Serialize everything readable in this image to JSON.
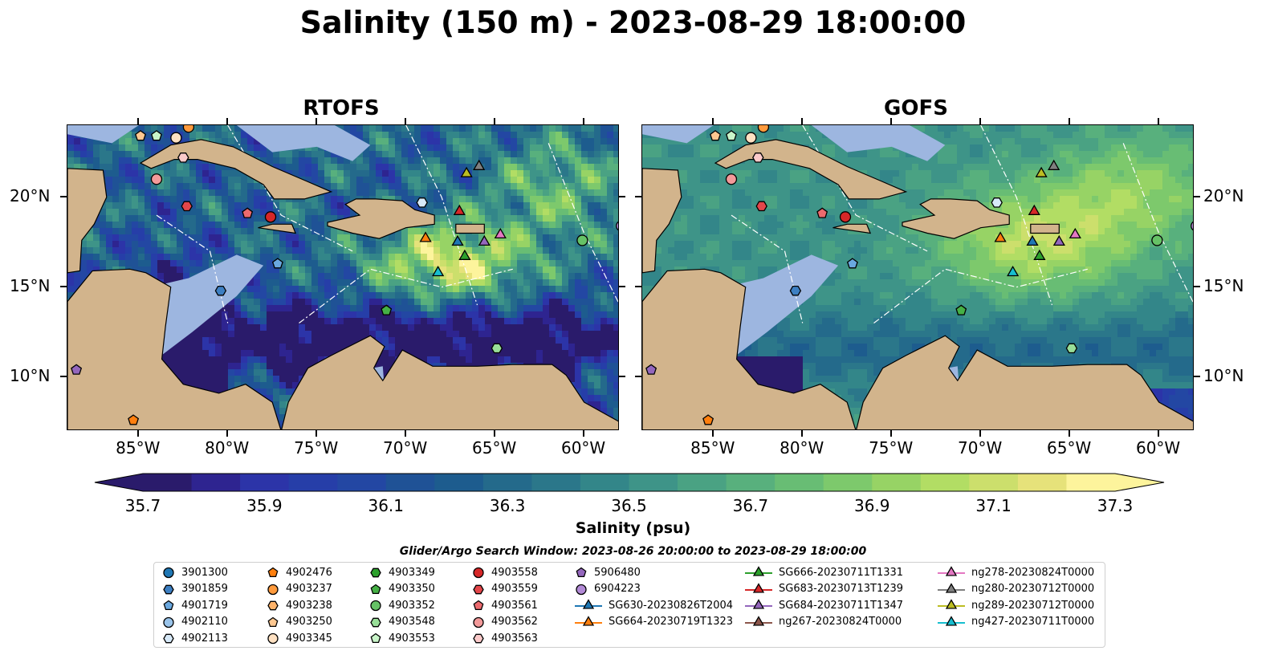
{
  "title": "Salinity (150 m) - 2023-08-29 18:00:00",
  "panels": [
    {
      "name": "RTOFS",
      "style": "rtofs"
    },
    {
      "name": "GOFS",
      "style": "gofs"
    }
  ],
  "lon_labels": [
    "85°W",
    "80°W",
    "75°W",
    "70°W",
    "65°W",
    "60°W"
  ],
  "lon_values": [
    -85,
    -80,
    -75,
    -70,
    -65,
    -60
  ],
  "lat_labels": [
    "20°N",
    "15°N",
    "10°N"
  ],
  "lat_values": [
    20,
    15,
    10
  ],
  "map_extent": {
    "lon": [
      -89,
      -58
    ],
    "lat": [
      7,
      24
    ]
  },
  "colorbar": {
    "label": "Salinity (psu)",
    "ticks": [
      "35.7",
      "35.9",
      "36.1",
      "36.3",
      "36.5",
      "36.7",
      "36.9",
      "37.1",
      "37.3"
    ],
    "range": [
      35.7,
      37.3
    ],
    "colors": [
      "#2a1b6b",
      "#2e2490",
      "#2c34a8",
      "#263ea8",
      "#2347a3",
      "#1f5296",
      "#1d5c8e",
      "#246a8b",
      "#2b778a",
      "#338689",
      "#3e9488",
      "#4aa283",
      "#58b07d",
      "#68bd74",
      "#7dc96c",
      "#97d365",
      "#b2dd64",
      "#ccdf6c",
      "#e6e27a",
      "#fdf49c"
    ],
    "background_land": "#d2b48c",
    "background_ocean_shallow": "#9db6e0"
  },
  "search_window": "Glider/Argo Search Window: 2023-08-26 20:00:00 to 2023-08-29 18:00:00",
  "legend": [
    {
      "label": "3901300",
      "shape": "circle",
      "color": "#1f77b4"
    },
    {
      "label": "3901859",
      "shape": "hexagon",
      "color": "#3d7fc2"
    },
    {
      "label": "4901719",
      "shape": "pentagon",
      "color": "#6aa8df"
    },
    {
      "label": "4902110",
      "shape": "circle",
      "color": "#9ac4ea"
    },
    {
      "label": "4902113",
      "shape": "hexagon",
      "color": "#d7e9f8"
    },
    {
      "label": "4902476",
      "shape": "pentagon",
      "color": "#ff7f0e"
    },
    {
      "label": "4903237",
      "shape": "circle",
      "color": "#ff9a3c"
    },
    {
      "label": "4903238",
      "shape": "hexagon",
      "color": "#ffb36a"
    },
    {
      "label": "4903250",
      "shape": "pentagon",
      "color": "#ffc891"
    },
    {
      "label": "4903345",
      "shape": "circle",
      "color": "#ffe1c2"
    },
    {
      "label": "4903349",
      "shape": "hexagon",
      "color": "#2ca02c"
    },
    {
      "label": "4903350",
      "shape": "pentagon",
      "color": "#45b045"
    },
    {
      "label": "4903352",
      "shape": "circle",
      "color": "#66c266"
    },
    {
      "label": "4903548",
      "shape": "hexagon",
      "color": "#98de98"
    },
    {
      "label": "4903553",
      "shape": "pentagon",
      "color": "#c9f5c9"
    },
    {
      "label": "4903558",
      "shape": "circle",
      "color": "#d62728"
    },
    {
      "label": "4903559",
      "shape": "hexagon",
      "color": "#e3464a"
    },
    {
      "label": "4903561",
      "shape": "pentagon",
      "color": "#ec6a6e"
    },
    {
      "label": "4903562",
      "shape": "circle",
      "color": "#f39a9a"
    },
    {
      "label": "4903563",
      "shape": "hexagon",
      "color": "#fbcaca"
    },
    {
      "label": "5906480",
      "shape": "pentagon",
      "color": "#9467bd"
    },
    {
      "label": "6904223",
      "shape": "circle",
      "color": "#b28ad6"
    },
    {
      "label": "SG630-20230826T2004",
      "shape": "triangle",
      "color": "#1f77b4"
    },
    {
      "label": "SG664-20230719T1323",
      "shape": "triangle",
      "color": "#ff7f0e"
    },
    {
      "label": "SG666-20230711T1331",
      "shape": "triangle",
      "color": "#2ca02c"
    },
    {
      "label": "SG683-20230713T1239",
      "shape": "triangle",
      "color": "#d62728"
    },
    {
      "label": "SG684-20230711T1347",
      "shape": "triangle",
      "color": "#9467bd"
    },
    {
      "label": "ng267-20230824T0000",
      "shape": "triangle",
      "color": "#8c564b"
    },
    {
      "label": "ng278-20230824T0000",
      "shape": "triangle",
      "color": "#e377c2"
    },
    {
      "label": "ng280-20230712T0000",
      "shape": "triangle",
      "color": "#7f7f7f"
    },
    {
      "label": "ng289-20230712T0000",
      "shape": "triangle",
      "color": "#bcbd22"
    },
    {
      "label": "ng427-20230711T0000",
      "shape": "triangle",
      "color": "#17becf"
    }
  ],
  "markers": [
    {
      "id": "4903563",
      "lon": -82.5,
      "lat": 22.2
    },
    {
      "id": "4903562",
      "lon": -84.0,
      "lat": 21.0
    },
    {
      "id": "4903559",
      "lon": -82.3,
      "lat": 19.5
    },
    {
      "id": "4903561",
      "lon": -78.9,
      "lat": 19.1
    },
    {
      "id": "4903558",
      "lon": -77.6,
      "lat": 18.9
    },
    {
      "id": "4901719",
      "lon": -77.2,
      "lat": 16.3
    },
    {
      "id": "3901859",
      "lon": -80.4,
      "lat": 14.8
    },
    {
      "id": "4903350",
      "lon": -71.1,
      "lat": 13.7
    },
    {
      "id": "4903352",
      "lon": -60.1,
      "lat": 17.6
    },
    {
      "id": "4903548",
      "lon": -64.9,
      "lat": 11.6
    },
    {
      "id": "4902113",
      "lon": -69.1,
      "lat": 19.7
    },
    {
      "id": "6904223",
      "lon": -57.9,
      "lat": 18.4
    },
    {
      "id": "5906480",
      "lon": -88.5,
      "lat": 10.4
    },
    {
      "id": "4902476",
      "lon": -85.3,
      "lat": 7.6
    },
    {
      "id": "4903250",
      "lon": -84.9,
      "lat": 23.4
    },
    {
      "id": "4903553",
      "lon": -84.0,
      "lat": 23.4
    },
    {
      "id": "4903345",
      "lon": -82.9,
      "lat": 23.3
    },
    {
      "id": "4903237",
      "lon": -82.2,
      "lat": 23.9
    },
    {
      "id": "SG664-20230719T1323",
      "lon": -68.9,
      "lat": 17.7
    },
    {
      "id": "SG630-20230826T2004",
      "lon": -67.1,
      "lat": 17.5
    },
    {
      "id": "SG684-20230711T1347",
      "lon": -65.6,
      "lat": 17.5
    },
    {
      "id": "ng278-20230824T0000",
      "lon": -64.7,
      "lat": 17.9
    },
    {
      "id": "SG666-20230711T1331",
      "lon": -66.7,
      "lat": 16.7
    },
    {
      "id": "ng427-20230711T0000",
      "lon": -68.2,
      "lat": 15.8
    },
    {
      "id": "SG683-20230713T1239",
      "lon": -67.0,
      "lat": 19.2
    },
    {
      "id": "ng289-20230712T0000",
      "lon": -66.6,
      "lat": 21.3
    },
    {
      "id": "ng280-20230712T0000",
      "lon": -65.9,
      "lat": 21.7
    }
  ]
}
